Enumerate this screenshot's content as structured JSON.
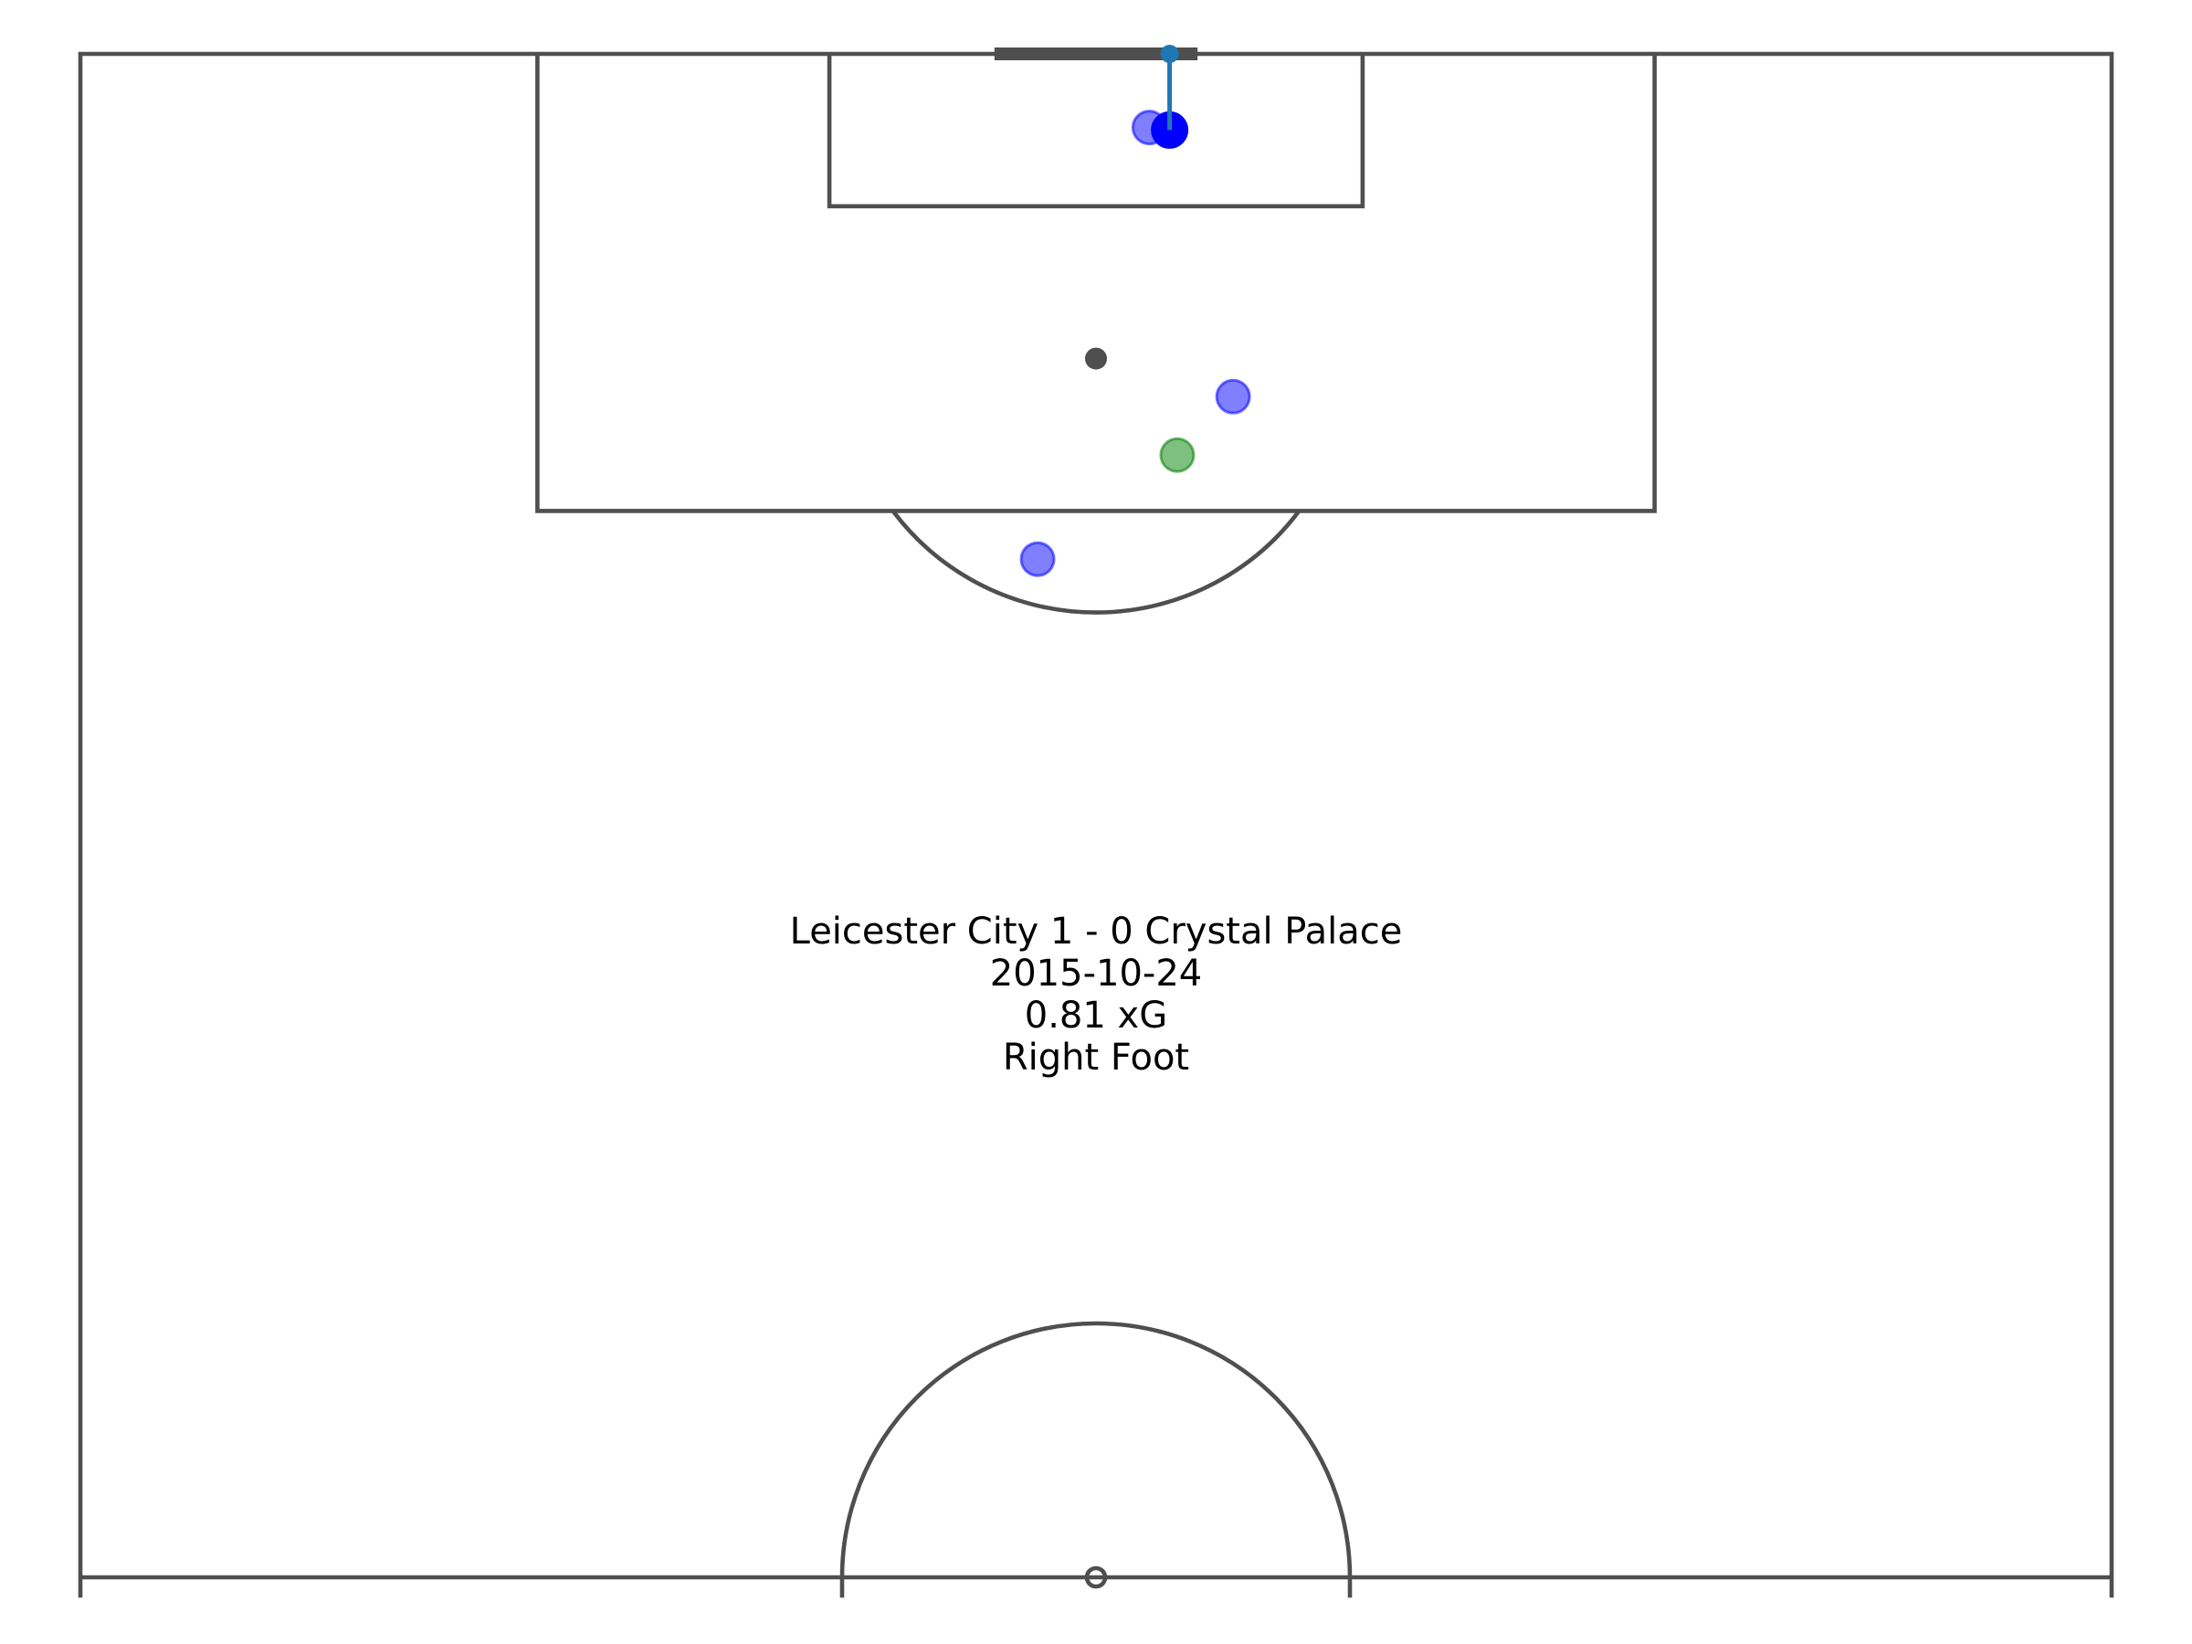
{
  "colors": {
    "pitch_lines": "#4f4f4f",
    "shooter_marker": "#0000ff",
    "teammate_marker": "#0000ff",
    "goalkeeper_marker": "#008000",
    "shot_line": "#1f77b4",
    "info_text": "#000000"
  },
  "chart_data": {
    "type": "scatter",
    "pitch": {
      "view": "half-pitch",
      "x_range": [
        0,
        120
      ],
      "y_range": [
        60,
        120
      ],
      "shown_x_range": [
        0,
        80
      ],
      "shown_y_range": [
        59.2,
        122.1
      ],
      "orientation": "vertical, attacking upward"
    },
    "shot": {
      "start": {
        "x": 42.9,
        "y": 117.0
      },
      "end": {
        "x": 42.9,
        "y": 120.0
      },
      "xg": 0.81,
      "body_part": "Right Foot",
      "outcome_marker": "goal-line"
    },
    "players": [
      {
        "role": "shooter",
        "x": 42.9,
        "y": 117.0
      },
      {
        "role": "teammate",
        "x": 42.1,
        "y": 117.1
      },
      {
        "role": "teammate",
        "x": 45.4,
        "y": 106.5
      },
      {
        "role": "teammate",
        "x": 37.7,
        "y": 100.1
      },
      {
        "role": "goalkeeper",
        "x": 43.2,
        "y": 104.2
      }
    ],
    "info": {
      "match": "Leicester City 1 - 0 Crystal Palace",
      "date": "2015-10-24",
      "xg_label": "0.81 xG",
      "body_part": "Right Foot"
    }
  }
}
